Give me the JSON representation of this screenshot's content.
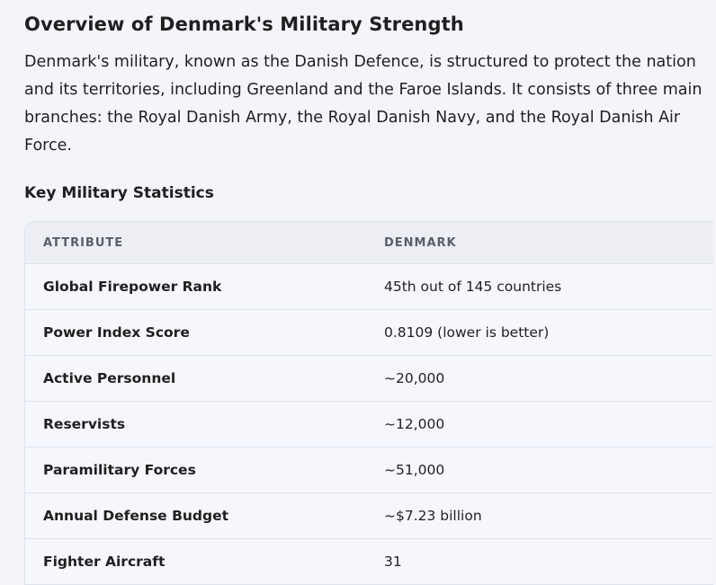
{
  "heading": "Overview of Denmark's Military Strength",
  "intro": "Denmark's military, known as the Danish Defence, is structured to protect the nation and its territories, including Greenland and the Faroe Islands. It consists of three main branches: the Royal Danish Army, the Royal Danish Navy, and the Royal Danish Air Force.",
  "stats_heading": "Key Military Statistics",
  "table": {
    "headers": [
      "ATTRIBUTE",
      "DENMARK"
    ],
    "rows": [
      {
        "attribute": "Global Firepower Rank",
        "value": "45th out of 145 countries"
      },
      {
        "attribute": "Power Index Score",
        "value": "0.8109 (lower is better)"
      },
      {
        "attribute": "Active Personnel",
        "value": "~20,000"
      },
      {
        "attribute": "Reservists",
        "value": "~12,000"
      },
      {
        "attribute": "Paramilitary Forces",
        "value": "~51,000"
      },
      {
        "attribute": "Annual Defense Budget",
        "value": "~$7.23 billion"
      },
      {
        "attribute": "Fighter Aircraft",
        "value": "31"
      }
    ]
  }
}
